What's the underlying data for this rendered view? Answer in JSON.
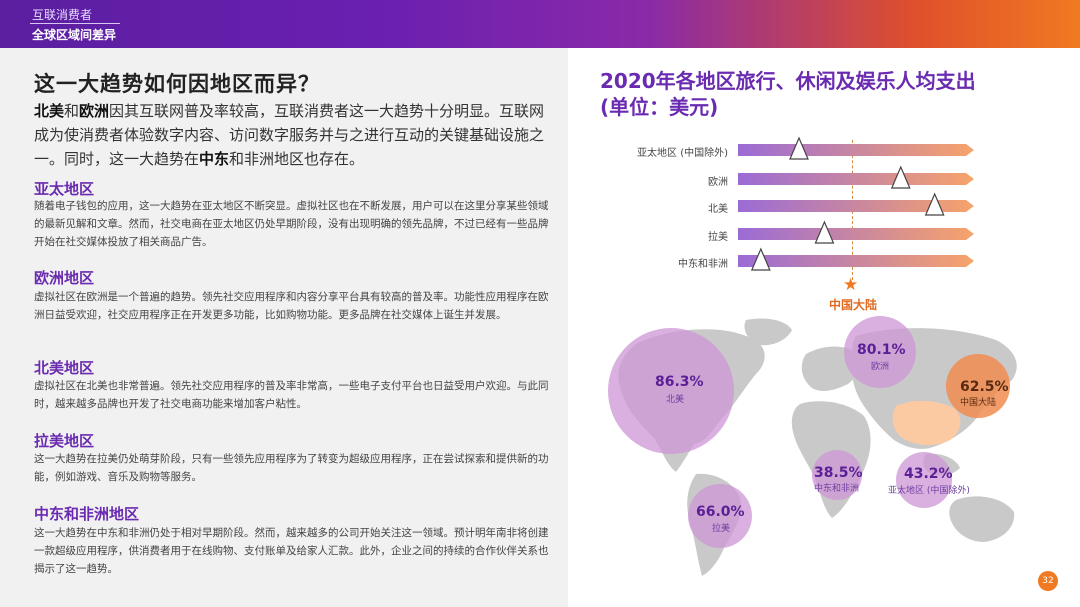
{
  "header": {
    "section": "互联消费者",
    "subtitle": "全球区域间差异"
  },
  "left": {
    "title": "这一大趋势如何因地区而异？",
    "intro": {
      "na": "北美",
      "and": "和",
      "eu": "欧洲",
      "p1": "因其互联网普及率较高，互联消费者这一大趋势十分明显。互联网成为使消费者体验数字内容、访问数字服务并与之进行互动的关键基础设施之一。同时，这一大趋势在",
      "me": "中东",
      "p2": "和非洲地区也存在。"
    },
    "sections": [
      {
        "heading": "亚太地区",
        "text": "随着电子钱包的应用，这一大趋势在亚太地区不断突显。虚拟社区也在不断发展，用户可以在这里分享某些领域的最新见解和文章。然而，社交电商在亚太地区仍处早期阶段，没有出现明确的领先品牌，不过已经有一些品牌开始在社交媒体投放了相关商品广告。"
      },
      {
        "heading": "欧洲地区",
        "text": "虚拟社区在欧洲是一个普遍的趋势。领先社交应用程序和内容分享平台具有较高的普及率。功能性应用程序在欧洲日益受欢迎，社交应用程序正在开发更多功能，比如购物功能。更多品牌在社交媒体上诞生并发展。"
      },
      {
        "heading": "北美地区",
        "text": "虚拟社区在北美也非常普遍。领先社交应用程序的普及率非常高，一些电子支付平台也日益受用户欢迎。与此同时，越来越多品牌也开发了社交电商功能来增加客户粘性。"
      },
      {
        "heading": "拉美地区",
        "text": "这一大趋势在拉美仍处萌芽阶段，只有一些领先应用程序为了转变为超级应用程序，正在尝试探索和提供新的功能，例如游戏、音乐及购物等服务。"
      },
      {
        "heading": "中东和非洲地区",
        "text": "这一大趋势在中东和非洲仍处于相对早期阶段。然而，越来越多的公司开始关注这一领域。预计明年南非将创建一款超级应用程序，供消费者用于在线购物、支付账单及给家人汇款。此外，企业之间的持续的合作伙伴关系也揭示了这一趋势。"
      }
    ]
  },
  "right": {
    "title_line1": "2020年各地区旅行、休闲及娱乐人均支出",
    "title_line2": "(单位：美元)",
    "china_label": "中国大陆"
  },
  "chart_data": {
    "type": "bar",
    "categories": [
      "亚太地区 (中国除外)",
      "欧洲",
      "北美",
      "拉美",
      "中东和非洲"
    ],
    "values": [
      0.25,
      0.73,
      0.89,
      0.37,
      0.07
    ],
    "scale": "relative position on an unlabeled bar (0 = left end, 1 = right end)",
    "reference": {
      "name": "中国大陆",
      "value": 0.49
    },
    "colors": {
      "bar_start": "#9b6bd6",
      "bar_end": "#f7a36a",
      "marker": "#ffffff",
      "star": "#f07a22"
    }
  },
  "map_bubbles": [
    {
      "id": "na",
      "value": "86.3%",
      "name": "北美"
    },
    {
      "id": "eu",
      "value": "80.1%",
      "name": "欧洲"
    },
    {
      "id": "cn",
      "value": "62.5%",
      "name": "中国大陆"
    },
    {
      "id": "me",
      "value": "38.5%",
      "name": "中东和非洲"
    },
    {
      "id": "ap",
      "value": "43.2%",
      "name": "亚太地区 (中国除外)"
    },
    {
      "id": "la",
      "value": "66.0%",
      "name": "拉美"
    }
  ],
  "page_number": "32"
}
